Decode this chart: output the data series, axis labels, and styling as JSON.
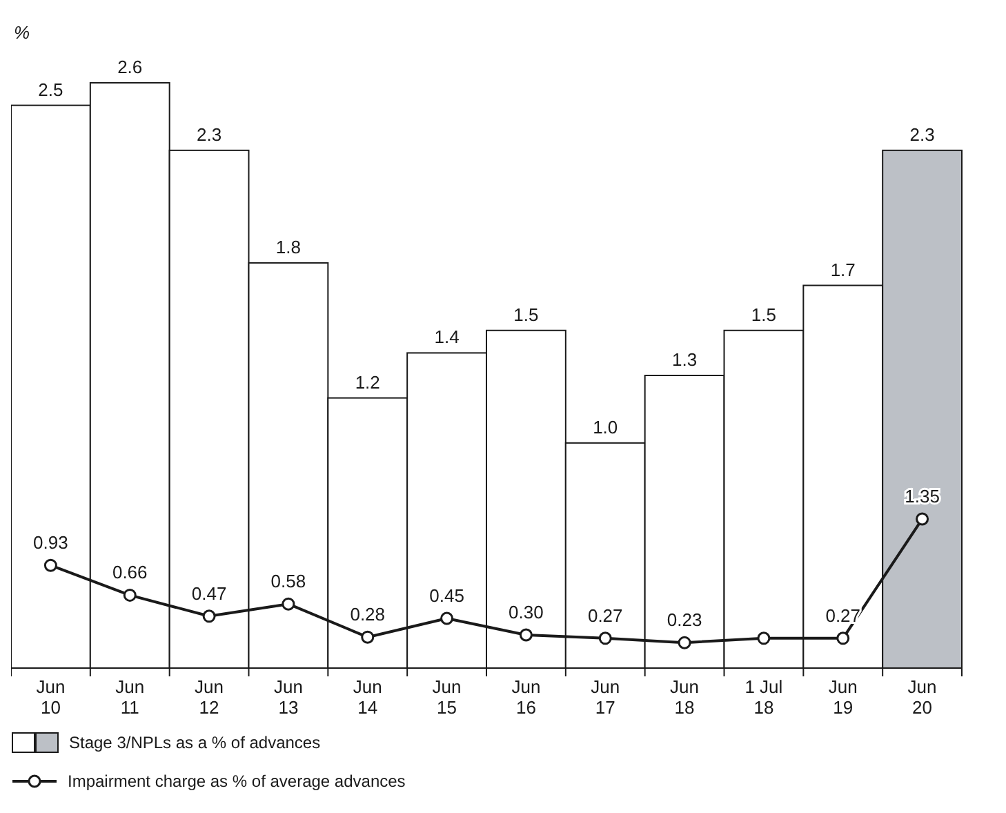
{
  "chart_data": {
    "type": "bar",
    "ylabel": "%",
    "categories": [
      "Jun 10",
      "Jun 11",
      "Jun 12",
      "Jun 13",
      "Jun 14",
      "Jun 15",
      "Jun 16",
      "Jun 17",
      "Jun 18",
      "1 Jul 18",
      "Jun 19",
      "Jun 20"
    ],
    "ylim": [
      0,
      2.6
    ],
    "y2lim": [
      0,
      5.3
    ],
    "legend": "bottom left",
    "tick_labels": "x",
    "series": [
      {
        "name": "Stage 3/NPLs as a % of advances",
        "colors": [
          "#ffffff",
          "#ffffff",
          "#ffffff",
          "#ffffff",
          "#ffffff",
          "#ffffff",
          "#ffffff",
          "#ffffff",
          "#ffffff",
          "#ffffff",
          "#ffffff",
          "#bcc0c6"
        ],
        "values": [
          2.5,
          2.6,
          2.3,
          1.8,
          1.2,
          1.4,
          1.5,
          1.0,
          1.3,
          1.5,
          1.7,
          2.3
        ],
        "value_labels": [
          "2.5",
          "2.6",
          "2.3",
          "1.8",
          "1.2",
          "1.4",
          "1.5",
          "1.0",
          "1.3",
          "1.5",
          "1.7",
          "2.3"
        ]
      },
      {
        "name": "Impairment charge as % of average advances",
        "type": "line",
        "axis": "y2",
        "color": "#1a1a1a",
        "marker": "circle",
        "values": [
          0.93,
          0.66,
          0.47,
          0.58,
          0.28,
          0.45,
          0.3,
          0.27,
          0.23,
          0.27,
          0.27,
          1.35
        ],
        "value_labels": [
          "0.93",
          "0.66",
          "0.47",
          "0.58",
          "0.28",
          "0.45",
          "0.30",
          "0.27",
          "0.23",
          null,
          "0.27",
          "1.35"
        ]
      }
    ]
  }
}
